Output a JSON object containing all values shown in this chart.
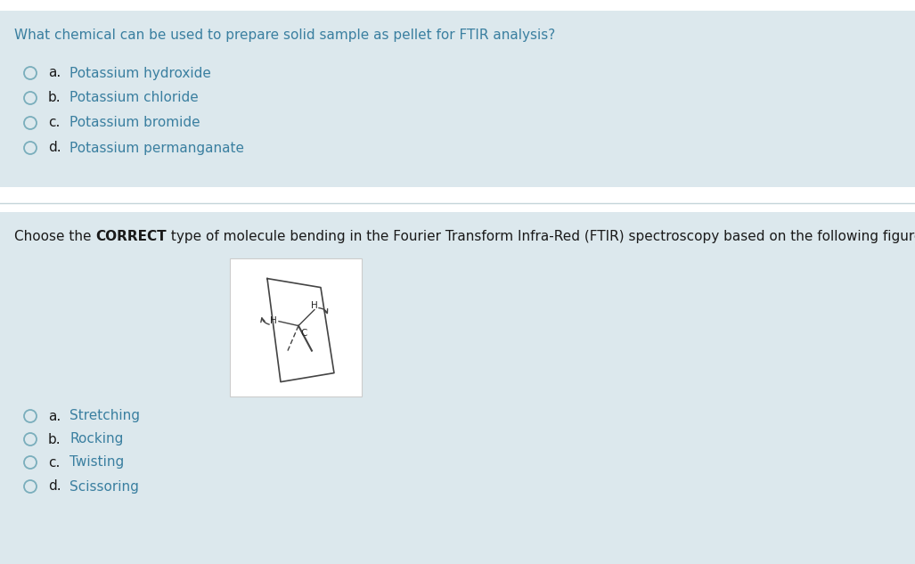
{
  "bg_color": "#dce8ed",
  "separator_color": "#c5d5da",
  "text_color_dark": "#1a1a1a",
  "text_color_blue": "#3a7fa0",
  "circle_edge_color": "#7aaebc",
  "q1_text": "What chemical can be used to prepare solid sample as pellet for FTIR analysis?",
  "q1_options": [
    {
      "label": "a.",
      "text": "Potassium hydroxide"
    },
    {
      "label": "b.",
      "text": "Potassium chloride"
    },
    {
      "label": "c.",
      "text": "Potassium bromide"
    },
    {
      "label": "d.",
      "text": "Potassium permanganate"
    }
  ],
  "q2_options": [
    {
      "label": "a.",
      "text": "Stretching"
    },
    {
      "label": "b.",
      "text": "Rocking"
    },
    {
      "label": "c.",
      "text": "Twisting"
    },
    {
      "label": "d.",
      "text": "Scissoring"
    }
  ],
  "fig_width": 10.27,
  "fig_height": 6.33,
  "dpi": 100
}
